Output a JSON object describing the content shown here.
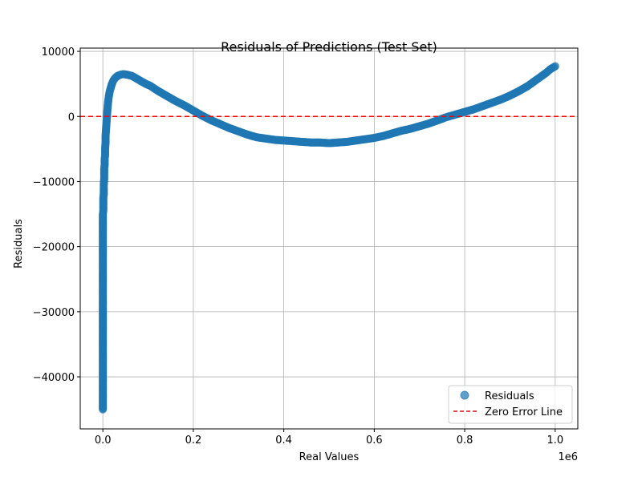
{
  "chart_data": {
    "type": "scatter",
    "title": "Residuals of Predictions (Test Set)",
    "xlabel": "Real Values",
    "ylabel": "Residuals",
    "x_offset_label": "1e6",
    "xlim": [
      -0.05,
      1.05
    ],
    "ylim": [
      -48000,
      10500
    ],
    "x_ticks": [
      0.0,
      0.2,
      0.4,
      0.6,
      0.8,
      1.0
    ],
    "x_tick_labels": [
      "0.0",
      "0.2",
      "0.4",
      "0.6",
      "0.8",
      "1.0"
    ],
    "y_ticks": [
      10000,
      0,
      -10000,
      -20000,
      -30000,
      -40000
    ],
    "y_tick_labels": [
      "10000",
      "0",
      "−10000",
      "−20000",
      "−30000",
      "−40000"
    ],
    "grid": true,
    "legend_position": "lower-right",
    "series": [
      {
        "name": "Residuals",
        "kind": "scatter",
        "color": "#1f77b4",
        "x": [
          0.0,
          0.0,
          0.0,
          0.0,
          0.0,
          0.0,
          0.0,
          0.0,
          0.0,
          0.0,
          0.0,
          0.0,
          0.0,
          0.0,
          0.0,
          0.0,
          0.0,
          0.0,
          0.0,
          0.0,
          0.001,
          0.001,
          0.001,
          0.002,
          0.002,
          0.002,
          0.003,
          0.003,
          0.003,
          0.004,
          0.004,
          0.005,
          0.005,
          0.006,
          0.006,
          0.007,
          0.008,
          0.009,
          0.01,
          0.011,
          0.012,
          0.013,
          0.015,
          0.017,
          0.02,
          0.023,
          0.027,
          0.032,
          0.038,
          0.045,
          0.055,
          0.065,
          0.075,
          0.085,
          0.095,
          0.105,
          0.12,
          0.14,
          0.16,
          0.18,
          0.2,
          0.22,
          0.24,
          0.26,
          0.28,
          0.3,
          0.32,
          0.34,
          0.36,
          0.38,
          0.4,
          0.42,
          0.44,
          0.46,
          0.48,
          0.5,
          0.52,
          0.54,
          0.56,
          0.58,
          0.6,
          0.62,
          0.64,
          0.66,
          0.68,
          0.7,
          0.72,
          0.74,
          0.76,
          0.78,
          0.8,
          0.82,
          0.84,
          0.86,
          0.88,
          0.9,
          0.92,
          0.94,
          0.96,
          0.98,
          0.99,
          1.0
        ],
        "y": [
          -45000,
          -43400,
          -39000,
          -35400,
          -34500,
          -32700,
          -32000,
          -29500,
          -29000,
          -27500,
          -26500,
          -25500,
          -24000,
          -22500,
          -21500,
          -20000,
          -19000,
          -18000,
          -16500,
          -15000,
          -14500,
          -13500,
          -12500,
          -12000,
          -11000,
          -10500,
          -9500,
          -9000,
          -8000,
          -7500,
          -6500,
          -6000,
          -5000,
          -4000,
          -3000,
          -2000,
          -1000,
          0,
          1000,
          1800,
          2500,
          3000,
          3800,
          4300,
          5000,
          5500,
          5900,
          6200,
          6400,
          6500,
          6400,
          6200,
          5800,
          5400,
          5000,
          4700,
          4000,
          3200,
          2400,
          1700,
          900,
          100,
          -600,
          -1200,
          -1800,
          -2300,
          -2800,
          -3200,
          -3400,
          -3600,
          -3700,
          -3800,
          -3900,
          -4000,
          -4000,
          -4100,
          -4000,
          -3900,
          -3700,
          -3500,
          -3300,
          -3000,
          -2600,
          -2200,
          -1900,
          -1500,
          -1100,
          -600,
          -100,
          300,
          700,
          1100,
          1600,
          2100,
          2600,
          3200,
          3900,
          4700,
          5700,
          6700,
          7300,
          7700
        ]
      },
      {
        "name": "Zero Error Line",
        "kind": "hline",
        "y": 0,
        "color": "#ff0000",
        "style": "dashed"
      }
    ]
  }
}
